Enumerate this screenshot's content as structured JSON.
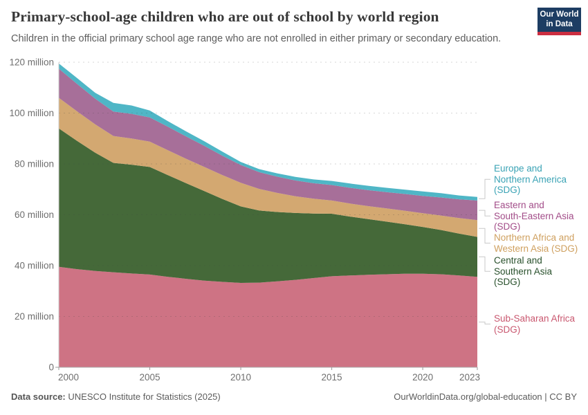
{
  "header": {
    "title": "Primary-school-age children who are out of school by world region",
    "subtitle": "Children in the official primary school age range who are not enrolled in either primary or secondary education.",
    "logo_line1": "Our World",
    "logo_line2": "in Data",
    "logo_bg": "#1d3d63",
    "logo_stripe": "#cc2e41"
  },
  "chart_data": {
    "type": "area",
    "stacked": true,
    "title": "Primary-school-age children who are out of school by world region",
    "xlabel": "",
    "ylabel": "",
    "unit": "million",
    "ylim": [
      0,
      120
    ],
    "y_ticks": [
      0,
      20,
      40,
      60,
      80,
      100,
      120
    ],
    "x_ticks": [
      2000,
      2005,
      2010,
      2015,
      2020,
      2023
    ],
    "grid": true,
    "legend_position": "right",
    "x": [
      2000,
      2001,
      2002,
      2003,
      2004,
      2005,
      2006,
      2007,
      2008,
      2009,
      2010,
      2011,
      2012,
      2013,
      2014,
      2015,
      2016,
      2017,
      2018,
      2019,
      2020,
      2021,
      2022,
      2023
    ],
    "series": [
      {
        "name": "Sub-Saharan Africa (SDG)",
        "label_lines": [
          "Sub-Saharan Africa",
          "(SDG)"
        ],
        "fill": "#ce7384",
        "label_color": "#c9576f",
        "values": [
          39.5,
          38.6,
          37.9,
          37.4,
          36.9,
          36.5,
          35.6,
          34.8,
          34.1,
          33.6,
          33.2,
          33.3,
          33.8,
          34.4,
          35.1,
          35.8,
          36.1,
          36.4,
          36.6,
          36.8,
          36.8,
          36.6,
          36.1,
          35.6
        ]
      },
      {
        "name": "Central and Southern Asia (SDG)",
        "label_lines": [
          "Central and",
          "Southern Asia",
          "(SDG)"
        ],
        "fill": "#456939",
        "label_color": "#28502b",
        "values": [
          54.5,
          50.5,
          46.5,
          43.0,
          42.8,
          42.3,
          40.0,
          37.6,
          35.2,
          32.6,
          30.1,
          28.4,
          27.3,
          26.3,
          25.4,
          24.6,
          23.2,
          21.9,
          20.7,
          19.5,
          18.4,
          17.4,
          16.5,
          15.7
        ]
      },
      {
        "name": "Northern Africa and Western Asia (SDG)",
        "label_lines": [
          "Northern Africa and",
          "Western Asia (SDG)"
        ],
        "fill": "#d3a871",
        "label_color": "#cfa05f",
        "values": [
          12.0,
          11.6,
          11.2,
          10.6,
          10.3,
          10.0,
          9.8,
          9.6,
          9.5,
          9.4,
          9.3,
          8.5,
          7.5,
          6.6,
          5.8,
          5.2,
          5.1,
          5.1,
          5.2,
          5.3,
          5.4,
          5.7,
          6.1,
          6.6
        ]
      },
      {
        "name": "Eastern and South-Eastern Asia (SDG)",
        "label_lines": [
          "Eastern and",
          "South-Eastern Asia",
          "(SDG)"
        ],
        "fill": "#a76f99",
        "label_color": "#a24c88",
        "values": [
          11.5,
          10.8,
          10.1,
          9.6,
          9.7,
          9.5,
          9.2,
          8.8,
          8.3,
          7.6,
          7.0,
          6.6,
          6.4,
          6.2,
          6.1,
          6.1,
          6.2,
          6.3,
          6.4,
          6.6,
          6.8,
          7.1,
          7.4,
          7.7
        ]
      },
      {
        "name": "Europe and Northern America (SDG)",
        "label_lines": [
          "Europe and",
          "Northern America",
          "(SDG)"
        ],
        "fill": "#4fb6c6",
        "label_color": "#3aa3b5",
        "values": [
          2.0,
          2.3,
          2.3,
          3.4,
          3.3,
          2.7,
          2.2,
          2.0,
          1.8,
          1.6,
          1.2,
          1.2,
          1.3,
          1.4,
          1.5,
          1.6,
          1.7,
          1.7,
          1.7,
          1.7,
          1.8,
          1.7,
          1.5,
          1.4
        ]
      }
    ]
  },
  "footer": {
    "datasource_label": "Data source:",
    "datasource": "UNESCO Institute for Statistics (2025)",
    "credit": "OurWorldinData.org/global-education | CC BY"
  }
}
